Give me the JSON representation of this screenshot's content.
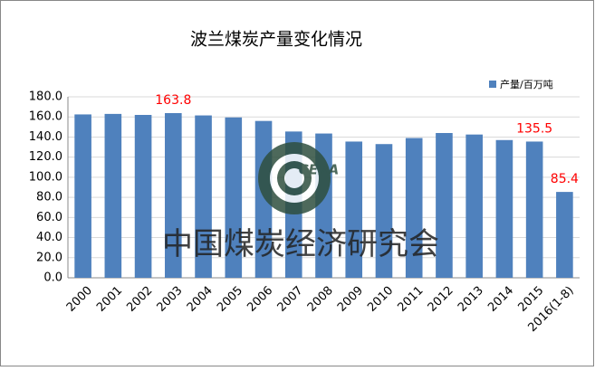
{
  "chart_data": {
    "type": "bar",
    "title": "波兰煤炭产量变化情况",
    "categories": [
      "2000",
      "2001",
      "2002",
      "2003",
      "2004",
      "2005",
      "2006",
      "2007",
      "2008",
      "2009",
      "2010",
      "2011",
      "2012",
      "2013",
      "2014",
      "2015",
      "2016(1-8)"
    ],
    "series": [
      {
        "name": "产量/百万吨",
        "color": "#4f81bd",
        "values": [
          162.5,
          163,
          162,
          163.8,
          161.5,
          159.5,
          156,
          145.5,
          143.5,
          135.5,
          133,
          139,
          144,
          142.5,
          137,
          135.5,
          85.4
        ],
        "value_labels": [
          null,
          null,
          null,
          "163.8",
          null,
          null,
          null,
          null,
          null,
          null,
          null,
          null,
          null,
          null,
          null,
          "135.5",
          "85.4"
        ]
      }
    ],
    "ylim": [
      0,
      180
    ],
    "yticks": [
      {
        "value": 0,
        "label": "0.0"
      },
      {
        "value": 20,
        "label": "20.0"
      },
      {
        "value": 40,
        "label": "40.0"
      },
      {
        "value": 60,
        "label": "60.0"
      },
      {
        "value": 80,
        "label": "80.0"
      },
      {
        "value": 100,
        "label": "100.0"
      },
      {
        "value": 120,
        "label": "120.0"
      },
      {
        "value": 140,
        "label": "140.0"
      },
      {
        "value": 160,
        "label": "160.0"
      },
      {
        "value": 180,
        "label": "180.0"
      }
    ],
    "grid": true,
    "legend": "top-right",
    "watermark": "中国煤炭经济研究会",
    "logo_text": "CERA"
  }
}
